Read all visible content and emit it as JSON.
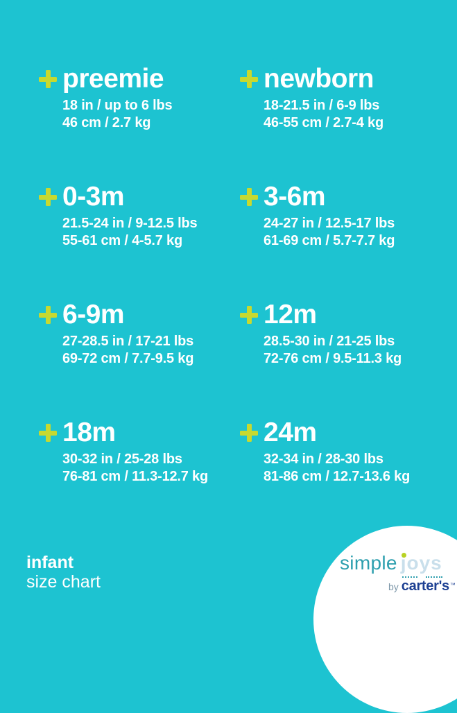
{
  "page": {
    "colors": {
      "background": "#1dc3d1",
      "accent": "#c7d930",
      "text": "#ffffff",
      "circle": "#ffffff",
      "logo_simple": "#2d9fae",
      "logo_joys": "#c9dfeb",
      "logo_dot": "#b8d223",
      "logo_by": "#7d97a9",
      "logo_carters": "#1c3f92"
    }
  },
  "sizes": [
    {
      "label": "preemie",
      "imperial": "18 in / up to 6 lbs",
      "metric": "46 cm / 2.7 kg"
    },
    {
      "label": "newborn",
      "imperial": "18-21.5 in / 6-9 lbs",
      "metric": "46-55 cm / 2.7-4 kg"
    },
    {
      "label": "0-3m",
      "imperial": "21.5-24 in / 9-12.5 lbs",
      "metric": "55-61 cm / 4-5.7 kg"
    },
    {
      "label": "3-6m",
      "imperial": "24-27 in / 12.5-17 lbs",
      "metric": "61-69 cm / 5.7-7.7 kg"
    },
    {
      "label": "6-9m",
      "imperial": "27-28.5 in / 17-21 lbs",
      "metric": "69-72 cm / 7.7-9.5 kg"
    },
    {
      "label": "12m",
      "imperial": "28.5-30 in / 21-25 lbs",
      "metric": "72-76 cm / 9.5-11.3 kg"
    },
    {
      "label": "18m",
      "imperial": "30-32 in / 25-28 lbs",
      "metric": "76-81 cm / 11.3-12.7 kg"
    },
    {
      "label": "24m",
      "imperial": "32-34 in / 28-30 lbs",
      "metric": "81-86 cm / 12.7-13.6 kg"
    }
  ],
  "footer": {
    "category": "infant",
    "subtitle": "size chart"
  },
  "logo": {
    "simple": "simple",
    "joys": "joys",
    "by": "by",
    "brand": "carter's",
    "tm": "™"
  }
}
